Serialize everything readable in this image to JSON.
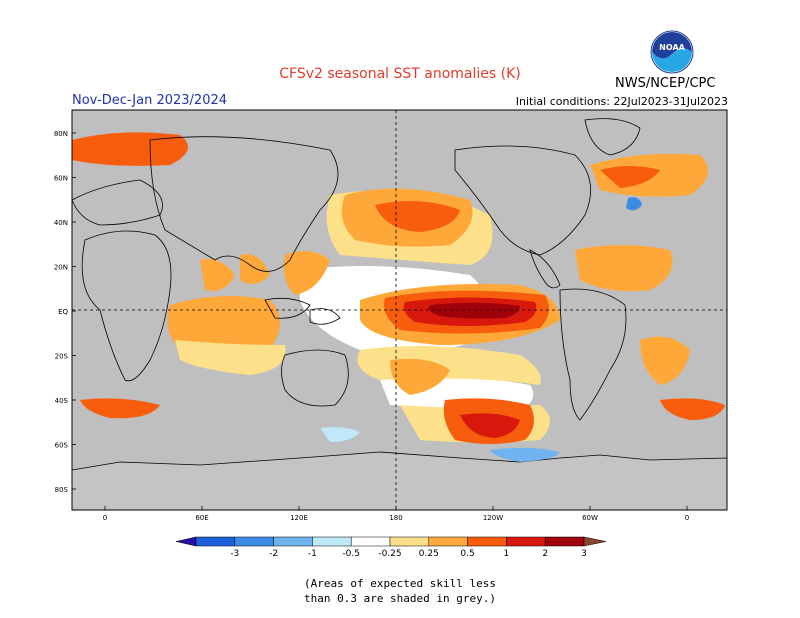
{
  "header": {
    "title": "CFSv2 seasonal SST anomalies (K)",
    "season": "Nov-Dec-Jan 2023/2024",
    "initial_conditions": "Initial conditions: 22Jul2023-31Jul2023",
    "org": "NWS/NCEP/CPC",
    "logo_text": "NOAA"
  },
  "map": {
    "lat_labels": [
      "80N",
      "60N",
      "40N",
      "20N",
      "EQ",
      "20S",
      "40S",
      "60S",
      "80S"
    ],
    "lon_labels": [
      "0",
      "60E",
      "120E",
      "180",
      "120W",
      "60W",
      "0"
    ],
    "ocean_color": "#bfbfbf",
    "land_color": "#bfbfbf"
  },
  "legend": {
    "ticks": [
      "-3",
      "-2",
      "-1",
      "-0.5",
      "-0.25",
      "0.25",
      "0.5",
      "1",
      "2",
      "3"
    ],
    "colors": [
      "#2a0da6",
      "#1f5fdc",
      "#3c8ce6",
      "#6fb4f0",
      "#bfe8f8",
      "#ffffff",
      "#fde08a",
      "#fea83a",
      "#f85d0e",
      "#d8180c",
      "#a0000a",
      "#8a4530"
    ]
  },
  "note": {
    "line1": "(Areas of expected skill less",
    "line2": "than 0.3 are shaded in grey.)"
  }
}
